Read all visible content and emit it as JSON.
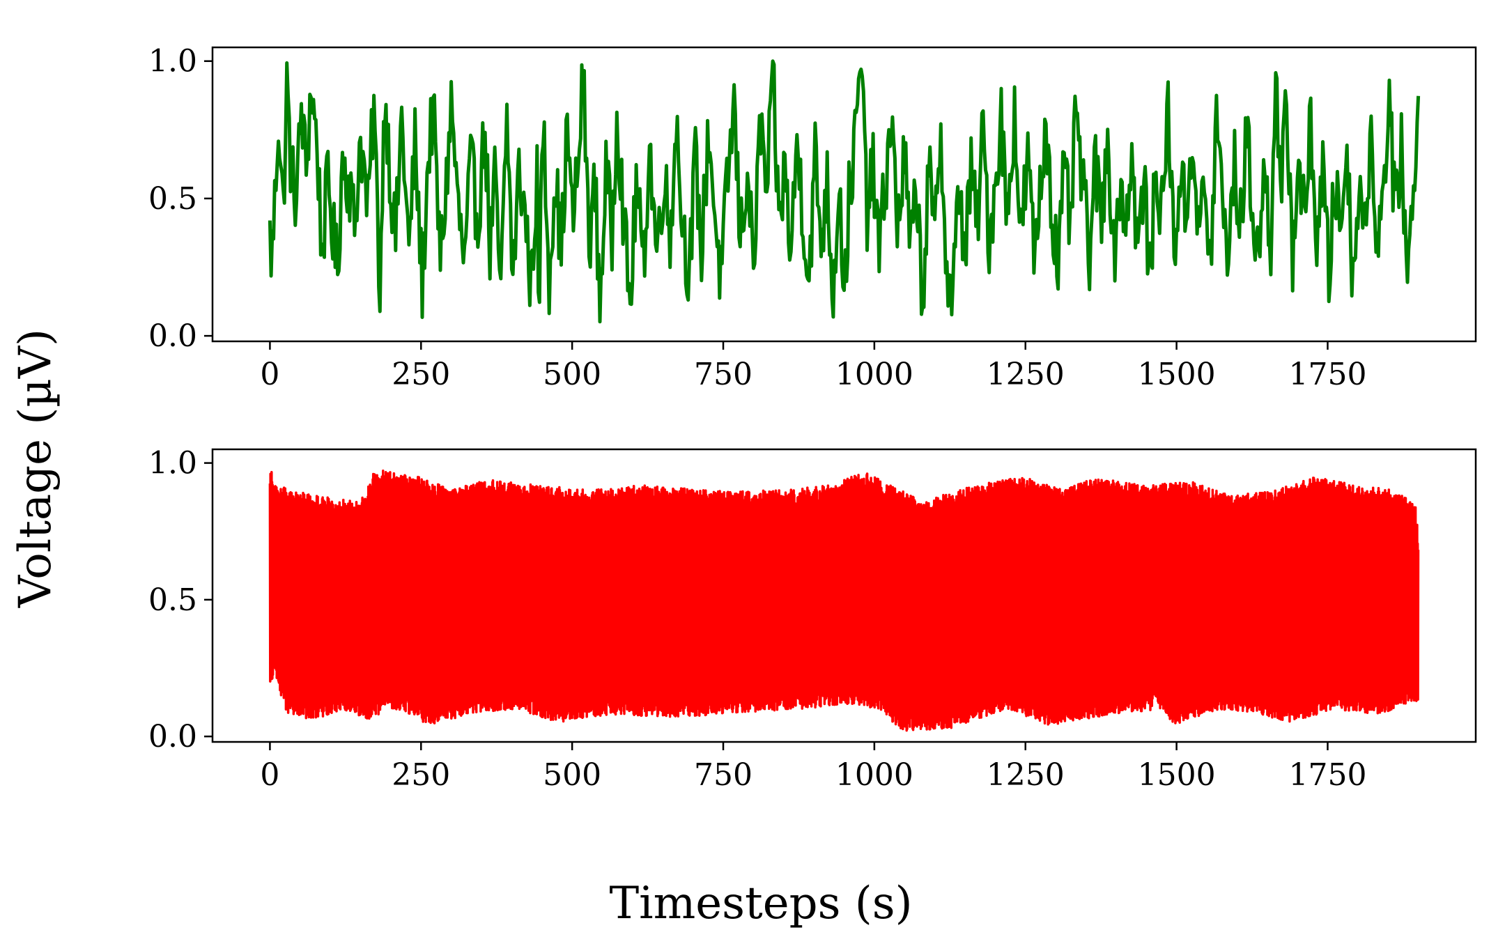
{
  "figure": {
    "ylabel": "Voltage (µV)",
    "xlabel": "Timesteps (s)"
  },
  "chart_data": [
    {
      "type": "line",
      "title": "",
      "xlabel": "",
      "ylabel": "",
      "xlim": [
        -95,
        1995
      ],
      "ylim": [
        -0.02,
        1.05
      ],
      "xticks": [
        0,
        250,
        500,
        750,
        1000,
        1250,
        1500,
        1750
      ],
      "yticks": [
        0.0,
        0.5,
        1.0
      ],
      "xtick_labels": [
        "0",
        "250",
        "500",
        "750",
        "1000",
        "1250",
        "1500",
        "1750"
      ],
      "ytick_labels": [
        "0.0",
        "0.5",
        "1.0"
      ],
      "grid": false,
      "series": [
        {
          "color": "#008000",
          "x_range": [
            0,
            1900
          ],
          "keypoints": [
            [
              0,
              0.36
            ],
            [
              3,
              0.27
            ],
            [
              8,
              0.48
            ],
            [
              14,
              0.8
            ],
            [
              22,
              0.45
            ],
            [
              28,
              0.92
            ],
            [
              35,
              0.6
            ],
            [
              44,
              0.5
            ],
            [
              52,
              0.83
            ],
            [
              60,
              0.6
            ],
            [
              68,
              0.91
            ],
            [
              78,
              0.7
            ],
            [
              86,
              0.3
            ],
            [
              96,
              0.57
            ],
            [
              104,
              0.38
            ],
            [
              112,
              0.24
            ],
            [
              120,
              0.65
            ],
            [
              132,
              0.55
            ],
            [
              140,
              0.4
            ],
            [
              150,
              0.73
            ],
            [
              162,
              0.45
            ],
            [
              172,
              0.84
            ],
            [
              182,
              0.16
            ],
            [
              190,
              0.9
            ],
            [
              200,
              0.55
            ],
            [
              208,
              0.35
            ],
            [
              218,
              0.8
            ],
            [
              230,
              0.3
            ],
            [
              240,
              0.7
            ],
            [
              252,
              0.18
            ],
            [
              262,
              0.65
            ],
            [
              270,
              0.83
            ],
            [
              282,
              0.27
            ],
            [
              292,
              0.55
            ],
            [
              300,
              0.85
            ],
            [
              312,
              0.45
            ],
            [
              322,
              0.25
            ],
            [
              332,
              0.63
            ],
            [
              344,
              0.42
            ],
            [
              356,
              0.77
            ],
            [
              364,
              0.3
            ],
            [
              372,
              0.57
            ],
            [
              382,
              0.15
            ],
            [
              392,
              0.8
            ],
            [
              402,
              0.2
            ],
            [
              412,
              0.6
            ],
            [
              422,
              0.45
            ],
            [
              432,
              0.18
            ],
            [
              442,
              0.6
            ],
            [
              444,
              0.03
            ],
            [
              452,
              0.78
            ],
            [
              462,
              0.22
            ],
            [
              472,
              0.6
            ],
            [
              482,
              0.3
            ],
            [
              492,
              0.77
            ],
            [
              500,
              0.42
            ],
            [
              510,
              0.6
            ],
            [
              518,
              0.96
            ],
            [
              528,
              0.35
            ],
            [
              538,
              0.55
            ],
            [
              546,
              0.12
            ],
            [
              556,
              0.6
            ],
            [
              566,
              0.35
            ],
            [
              574,
              0.84
            ],
            [
              586,
              0.4
            ],
            [
              596,
              0.1
            ],
            [
              606,
              0.55
            ],
            [
              618,
              0.25
            ],
            [
              628,
              0.7
            ],
            [
              640,
              0.3
            ],
            [
              652,
              0.6
            ],
            [
              662,
              0.35
            ],
            [
              672,
              0.8
            ],
            [
              682,
              0.42
            ],
            [
              694,
              0.22
            ],
            [
              704,
              0.65
            ],
            [
              714,
              0.3
            ],
            [
              726,
              0.75
            ],
            [
              736,
              0.45
            ],
            [
              746,
              0.2
            ],
            [
              758,
              0.58
            ],
            [
              768,
              0.85
            ],
            [
              778,
              0.35
            ],
            [
              790,
              0.6
            ],
            [
              800,
              0.25
            ],
            [
              812,
              0.78
            ],
            [
              822,
              0.5
            ],
            [
              832,
              0.96
            ],
            [
              842,
              0.4
            ],
            [
              852,
              0.62
            ],
            [
              862,
              0.28
            ],
            [
              872,
              0.72
            ],
            [
              882,
              0.45
            ],
            [
              892,
              0.2
            ],
            [
              902,
              0.66
            ],
            [
              912,
              0.35
            ],
            [
              922,
              0.55
            ],
            [
              932,
              0.15
            ],
            [
              942,
              0.6
            ],
            [
              950,
              0.12
            ],
            [
              958,
              0.5
            ],
            [
              968,
              0.7
            ],
            [
              978,
              1.0
            ],
            [
              988,
              0.45
            ],
            [
              998,
              0.6
            ],
            [
              1008,
              0.3
            ],
            [
              1018,
              0.55
            ],
            [
              1028,
              0.8
            ],
            [
              1038,
              0.4
            ],
            [
              1050,
              0.65
            ],
            [
              1060,
              0.3
            ],
            [
              1070,
              0.55
            ],
            [
              1080,
              0.12
            ],
            [
              1090,
              0.6
            ],
            [
              1100,
              0.35
            ],
            [
              1110,
              0.78
            ],
            [
              1120,
              0.2
            ],
            [
              1130,
              0.14
            ],
            [
              1140,
              0.55
            ],
            [
              1150,
              0.3
            ],
            [
              1160,
              0.6
            ],
            [
              1170,
              0.4
            ],
            [
              1180,
              0.75
            ],
            [
              1190,
              0.35
            ],
            [
              1200,
              0.55
            ],
            [
              1210,
              0.8
            ],
            [
              1220,
              0.42
            ],
            [
              1232,
              0.83
            ],
            [
              1242,
              0.35
            ],
            [
              1254,
              0.65
            ],
            [
              1264,
              0.3
            ],
            [
              1274,
              0.5
            ],
            [
              1284,
              0.8
            ],
            [
              1294,
              0.45
            ],
            [
              1304,
              0.25
            ],
            [
              1314,
              0.6
            ],
            [
              1324,
              0.4
            ],
            [
              1334,
              0.82
            ],
            [
              1344,
              0.55
            ],
            [
              1356,
              0.3
            ],
            [
              1366,
              0.62
            ],
            [
              1376,
              0.4
            ],
            [
              1386,
              0.78
            ],
            [
              1396,
              0.28
            ],
            [
              1406,
              0.55
            ],
            [
              1416,
              0.42
            ],
            [
              1426,
              0.66
            ],
            [
              1436,
              0.3
            ],
            [
              1446,
              0.58
            ],
            [
              1456,
              0.2
            ],
            [
              1466,
              0.62
            ],
            [
              1476,
              0.44
            ],
            [
              1486,
              0.84
            ],
            [
              1496,
              0.3
            ],
            [
              1506,
              0.6
            ],
            [
              1516,
              0.42
            ],
            [
              1526,
              0.76
            ],
            [
              1536,
              0.35
            ],
            [
              1546,
              0.55
            ],
            [
              1556,
              0.25
            ],
            [
              1566,
              0.8
            ],
            [
              1576,
              0.48
            ],
            [
              1586,
              0.3
            ],
            [
              1596,
              0.62
            ],
            [
              1606,
              0.4
            ],
            [
              1616,
              0.75
            ],
            [
              1626,
              0.45
            ],
            [
              1636,
              0.3
            ],
            [
              1646,
              0.6
            ],
            [
              1656,
              0.35
            ],
            [
              1664,
              0.98
            ],
            [
              1672,
              0.45
            ],
            [
              1682,
              0.85
            ],
            [
              1692,
              0.3
            ],
            [
              1702,
              0.65
            ],
            [
              1712,
              0.4
            ],
            [
              1722,
              0.78
            ],
            [
              1732,
              0.35
            ],
            [
              1742,
              0.6
            ],
            [
              1752,
              0.22
            ],
            [
              1762,
              0.55
            ],
            [
              1772,
              0.4
            ],
            [
              1782,
              0.7
            ],
            [
              1792,
              0.18
            ],
            [
              1802,
              0.6
            ],
            [
              1812,
              0.35
            ],
            [
              1822,
              0.8
            ],
            [
              1832,
              0.3
            ],
            [
              1842,
              0.55
            ],
            [
              1852,
              0.88
            ],
            [
              1862,
              0.4
            ],
            [
              1872,
              0.72
            ],
            [
              1882,
              0.18
            ],
            [
              1890,
              0.5
            ],
            [
              1900,
              0.83
            ]
          ]
        }
      ]
    },
    {
      "type": "line",
      "title": "",
      "xlabel": "",
      "ylabel": "",
      "xlim": [
        -95,
        1995
      ],
      "ylim": [
        -0.02,
        1.05
      ],
      "xticks": [
        0,
        250,
        500,
        750,
        1000,
        1250,
        1500,
        1750
      ],
      "yticks": [
        0.0,
        0.5,
        1.0
      ],
      "xtick_labels": [
        "0",
        "250",
        "500",
        "750",
        "1000",
        "1250",
        "1500",
        "1750"
      ],
      "ytick_labels": [
        "0.0",
        "0.5",
        "1.0"
      ],
      "grid": false,
      "series": [
        {
          "color": "#ff0000",
          "x_range": [
            0,
            1900
          ],
          "keypoints": [
            [
              0,
              0.2
            ],
            [
              3,
              0.97
            ],
            [
              8,
              0.22
            ],
            [
              12,
              0.92
            ],
            [
              25,
              0.09
            ],
            [
              40,
              0.9
            ],
            [
              65,
              0.05
            ],
            [
              80,
              0.88
            ],
            [
              120,
              0.1
            ],
            [
              150,
              0.86
            ],
            [
              168,
              0.06
            ],
            [
              175,
              0.98
            ],
            [
              190,
              0.1
            ],
            [
              210,
              0.96
            ],
            [
              240,
              0.08
            ],
            [
              250,
              0.95
            ],
            [
              258,
              0.04
            ],
            [
              300,
              0.9
            ],
            [
              330,
              0.08
            ],
            [
              360,
              0.94
            ],
            [
              410,
              0.1
            ],
            [
              450,
              0.92
            ],
            [
              480,
              0.05
            ],
            [
              530,
              0.9
            ],
            [
              560,
              0.08
            ],
            [
              620,
              0.92
            ],
            [
              680,
              0.07
            ],
            [
              730,
              0.9
            ],
            [
              790,
              0.09
            ],
            [
              850,
              0.9
            ],
            [
              880,
              0.1
            ],
            [
              930,
              0.92
            ],
            [
              960,
              0.12
            ],
            [
              980,
              0.97
            ],
            [
              1010,
              0.1
            ],
            [
              1045,
              0.02
            ],
            [
              1080,
              0.86
            ],
            [
              1126,
              0.03
            ],
            [
              1170,
              0.92
            ],
            [
              1220,
              0.1
            ],
            [
              1248,
              0.95
            ],
            [
              1290,
              0.04
            ],
            [
              1316,
              0.9
            ],
            [
              1360,
              0.95
            ],
            [
              1400,
              0.08
            ],
            [
              1440,
              0.92
            ],
            [
              1470,
              0.1
            ],
            [
              1495,
              0.04
            ],
            [
              1530,
              0.93
            ],
            [
              1570,
              0.1
            ],
            [
              1590,
              0.88
            ],
            [
              1640,
              0.08
            ],
            [
              1660,
              0.9
            ],
            [
              1690,
              0.05
            ],
            [
              1730,
              0.95
            ],
            [
              1760,
              0.1
            ],
            [
              1800,
              0.92
            ],
            [
              1840,
              0.08
            ],
            [
              1860,
              0.9
            ],
            [
              1880,
              0.12
            ],
            [
              1895,
              0.85
            ],
            [
              1900,
              0.74
            ]
          ]
        }
      ]
    }
  ]
}
